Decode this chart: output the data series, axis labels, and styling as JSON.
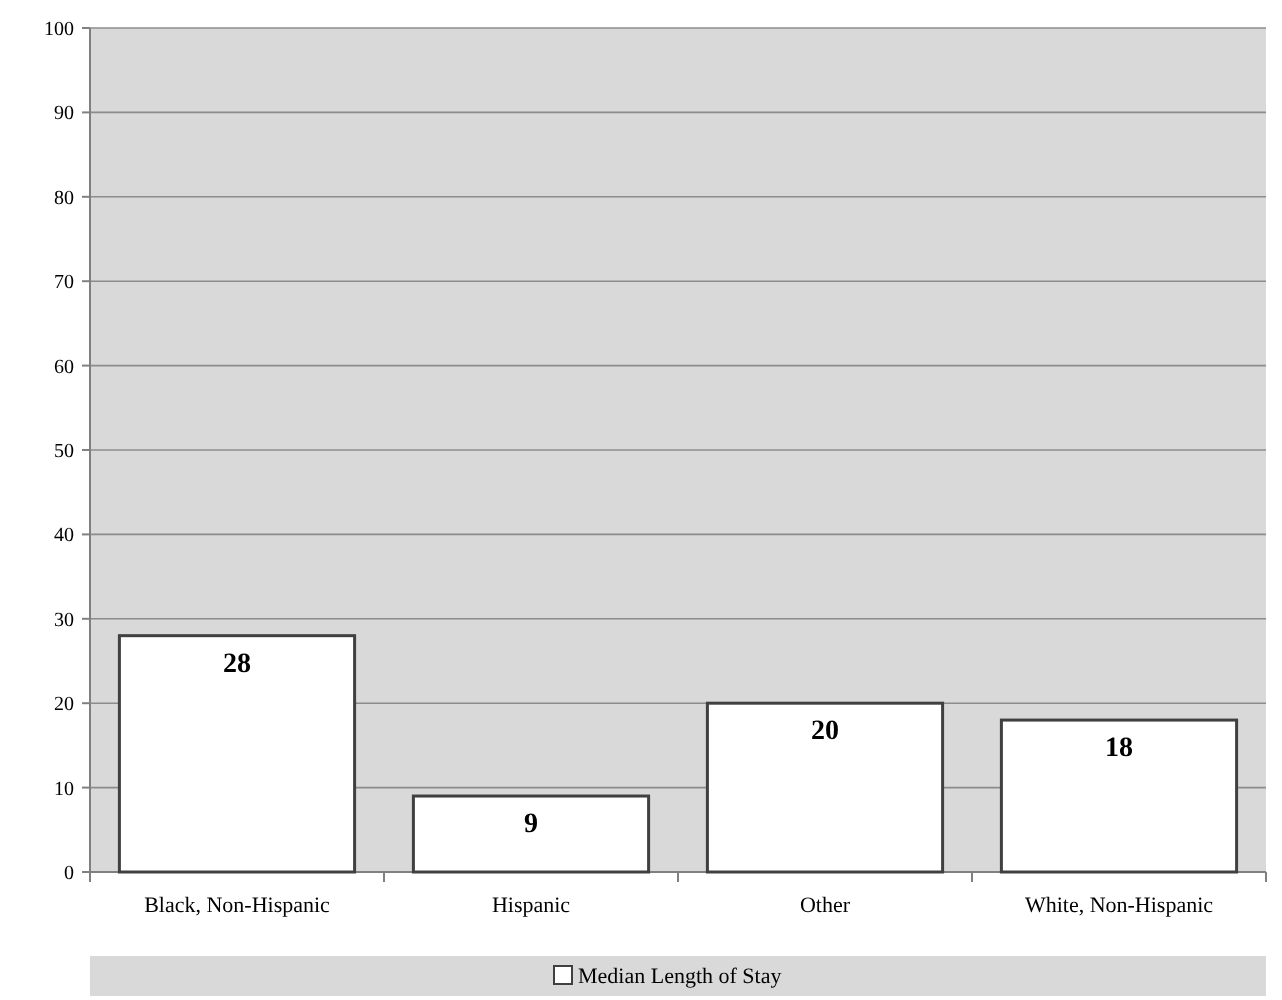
{
  "chart_data": {
    "type": "bar",
    "categories": [
      "Black, Non-Hispanic",
      "Hispanic",
      "Other",
      "White, Non-Hispanic"
    ],
    "series": [
      {
        "name": "Median Length of Stay",
        "color": "#ffffff",
        "values": [
          28,
          9,
          20,
          18
        ]
      }
    ],
    "ylim": [
      0,
      100
    ],
    "yticks": [
      0,
      10,
      20,
      30,
      40,
      50,
      60,
      70,
      80,
      90,
      100
    ],
    "grid": "y",
    "data_labels": true,
    "legend": "bottom"
  }
}
